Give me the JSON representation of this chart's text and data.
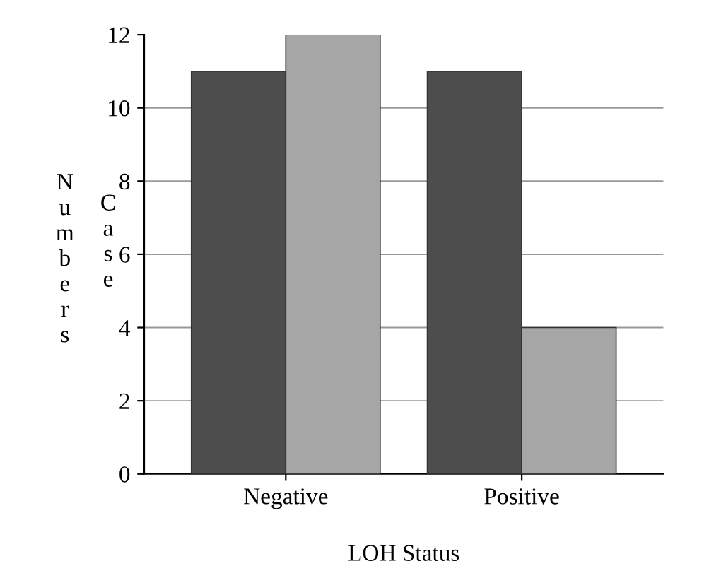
{
  "chart_data": {
    "type": "bar",
    "xlabel": "LOH Status",
    "ylabel": "Case Numbers",
    "categories": [
      "Negative",
      "Positive"
    ],
    "series": [
      {
        "color": "#4d4d4d",
        "values": [
          11,
          11
        ]
      },
      {
        "color": "#a6a6a6",
        "values": [
          12,
          4
        ]
      }
    ],
    "ylim": [
      0,
      12
    ],
    "yticks": [
      0,
      2,
      4,
      6,
      8,
      10,
      12
    ],
    "grid": "y",
    "legend": false
  }
}
